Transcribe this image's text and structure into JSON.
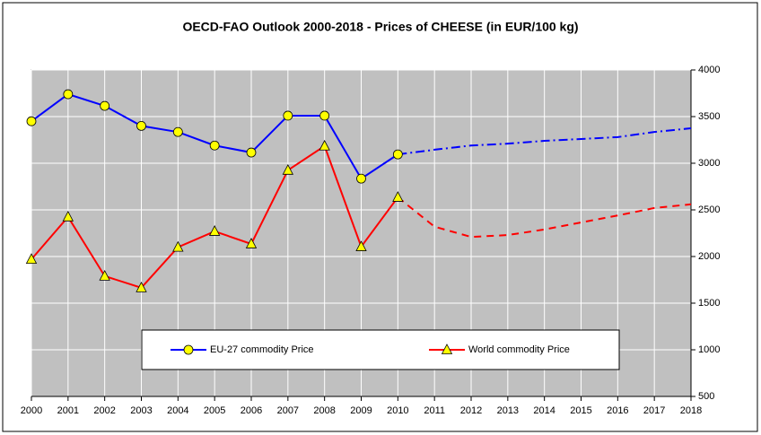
{
  "chart_data": {
    "type": "line",
    "title": "OECD-FAO Outlook 2000-2018 - Prices of CHEESE (in EUR/100 kg)",
    "categories": [
      "2000",
      "2001",
      "2002",
      "2003",
      "2004",
      "2005",
      "2006",
      "2007",
      "2008",
      "2009",
      "2010",
      "2011",
      "2012",
      "2013",
      "2014",
      "2015",
      "2016",
      "2017",
      "2018"
    ],
    "forecast_from": "2010",
    "series": [
      {
        "name": "EU-27 commodity Price",
        "color": "#0000ff",
        "marker": "circle",
        "values": [
          3450,
          3740,
          3615,
          3400,
          3335,
          3190,
          3115,
          3510,
          3510,
          2835,
          3095,
          3145,
          3190,
          3210,
          3240,
          3260,
          3280,
          3335,
          3375
        ]
      },
      {
        "name": "World commodity Price",
        "color": "#ff0000",
        "marker": "triangle",
        "values": [
          1970,
          2425,
          1790,
          1665,
          2100,
          2270,
          2135,
          2925,
          3185,
          2105,
          2635,
          2320,
          2210,
          2230,
          2290,
          2365,
          2440,
          2520,
          2560
        ]
      }
    ],
    "ylim": [
      500,
      4000
    ],
    "yticks": [
      500,
      1000,
      1500,
      2000,
      2500,
      3000,
      3500,
      4000
    ],
    "y_axis_side": "right",
    "grid": true,
    "legend": "bottom"
  }
}
